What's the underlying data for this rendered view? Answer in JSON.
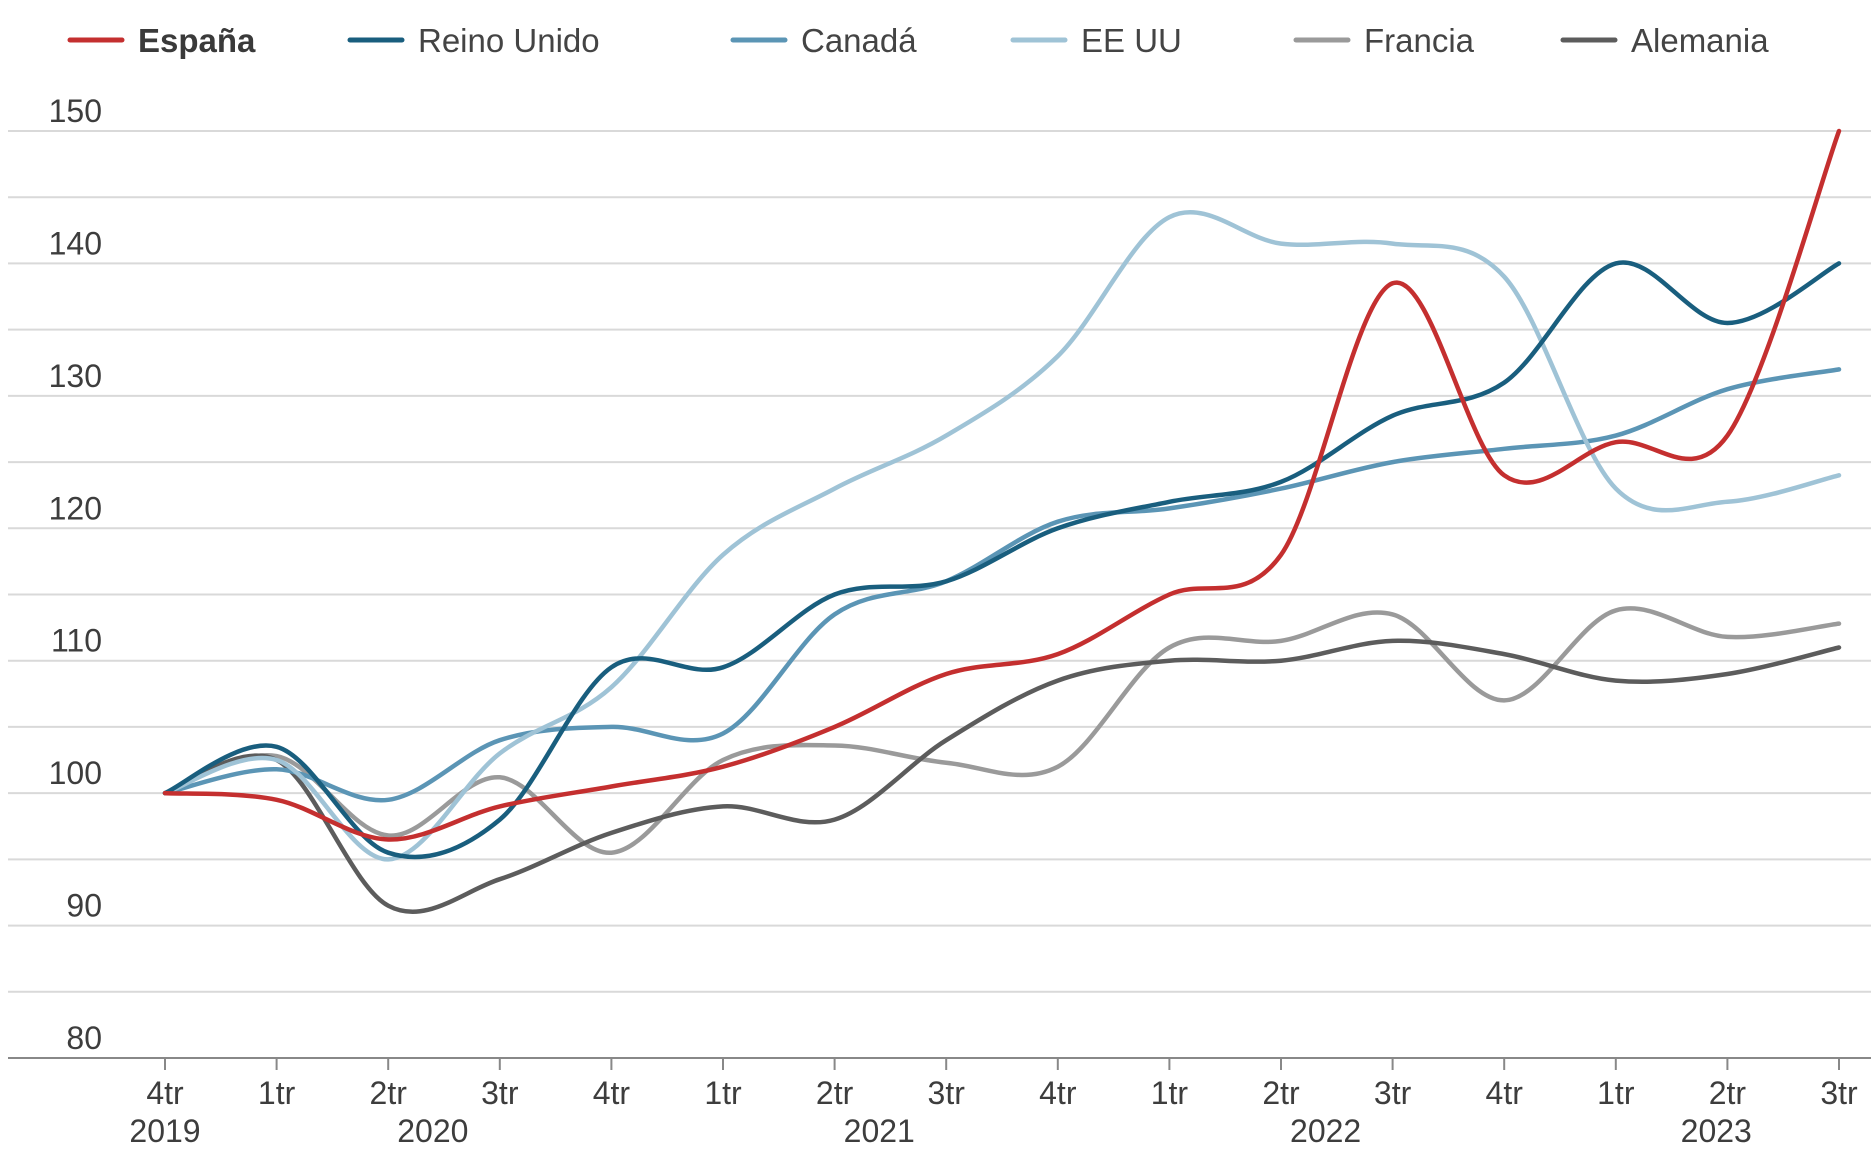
{
  "chart_data": {
    "type": "line",
    "title": "",
    "xlabel": "",
    "ylabel": "",
    "ylim": [
      80,
      150
    ],
    "yticks": [
      80,
      90,
      100,
      110,
      120,
      130,
      140,
      150
    ],
    "grid": true,
    "legend_position": "top",
    "categories": [
      "4tr",
      "1tr",
      "2tr",
      "3tr",
      "4tr",
      "1tr",
      "2tr",
      "3tr",
      "4tr",
      "1tr",
      "2tr",
      "3tr",
      "4tr",
      "1tr",
      "2tr",
      "3tr"
    ],
    "years": [
      {
        "label": "2019",
        "center_index": 0
      },
      {
        "label": "2020",
        "center_index": 2.4
      },
      {
        "label": "2021",
        "center_index": 6.4
      },
      {
        "label": "2022",
        "center_index": 10.4
      },
      {
        "label": "2023",
        "center_index": 13.9
      }
    ],
    "series": [
      {
        "name": "Francia",
        "color": "#9a9a9a",
        "bold": false,
        "values": [
          100,
          102.8,
          96.8,
          101.2,
          95.5,
          102.5,
          103.6,
          102.3,
          102.0,
          111.0,
          111.5,
          113.5,
          107.0,
          113.8,
          111.8,
          112.8
        ]
      },
      {
        "name": "Alemania",
        "color": "#5c5c5c",
        "bold": false,
        "values": [
          100,
          102.5,
          91.5,
          93.5,
          97.0,
          99.0,
          98.0,
          104.0,
          108.5,
          110.0,
          110.0,
          111.5,
          110.5,
          108.5,
          109.0,
          111.0
        ]
      },
      {
        "name": "Canadá",
        "color": "#5b95b5",
        "bold": false,
        "values": [
          100,
          101.8,
          99.5,
          104.0,
          105.0,
          104.5,
          113.5,
          116.0,
          120.5,
          121.5,
          123.0,
          125.0,
          126.0,
          127.0,
          130.5,
          132.0
        ]
      },
      {
        "name": "EE UU",
        "color": "#9fc3d6",
        "bold": false,
        "values": [
          100,
          102.5,
          95.0,
          103.0,
          108.0,
          118.0,
          123.0,
          127.0,
          133.0,
          143.5,
          141.5,
          141.5,
          139.0,
          123.0,
          122.0,
          124.0
        ]
      },
      {
        "name": "Reino Unido",
        "color": "#195e7e",
        "bold": false,
        "values": [
          100,
          103.5,
          95.5,
          98.0,
          109.5,
          109.5,
          115.0,
          116.0,
          120.0,
          122.0,
          123.5,
          128.5,
          131.0,
          140.0,
          135.5,
          140.0
        ]
      },
      {
        "name": "España",
        "color": "#c42f2f",
        "bold": true,
        "values": [
          100,
          99.5,
          96.5,
          99.0,
          100.5,
          102.0,
          105.0,
          109.0,
          110.5,
          115.0,
          118.0,
          138.5,
          124.0,
          126.5,
          127.0,
          150.0
        ]
      }
    ]
  }
}
